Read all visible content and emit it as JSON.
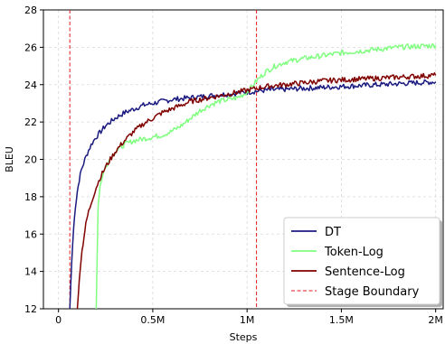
{
  "chart_data": {
    "type": "line",
    "title": "",
    "xlabel": "Steps",
    "ylabel": "BLEU",
    "xlim": [
      -0.08,
      2.04
    ],
    "ylim": [
      12,
      28
    ],
    "x_unit": "M steps",
    "x_ticks": [
      0,
      0.5,
      1.0,
      1.5,
      2.0
    ],
    "x_tick_labels": [
      "0",
      "0.5M",
      "1M",
      "1.5M",
      "2M"
    ],
    "y_ticks": [
      12,
      14,
      16,
      18,
      20,
      22,
      24,
      26,
      28
    ],
    "y_tick_labels": [
      "12",
      "14",
      "16",
      "18",
      "20",
      "22",
      "24",
      "26",
      "28"
    ],
    "grid": true,
    "legend_position": "lower-right",
    "stage_boundaries": [
      0.06,
      1.05
    ],
    "series": [
      {
        "name": "DT",
        "color": "#1a1a80",
        "x": [
          0.06,
          0.07,
          0.08,
          0.09,
          0.1,
          0.11,
          0.12,
          0.14,
          0.16,
          0.18,
          0.2,
          0.25,
          0.3,
          0.35,
          0.4,
          0.45,
          0.5,
          0.55,
          0.6,
          0.65,
          0.7,
          0.75,
          0.8,
          0.85,
          0.9,
          0.95,
          1.0,
          1.05,
          1.1,
          1.2,
          1.3,
          1.4,
          1.5,
          1.6,
          1.7,
          1.8,
          1.9,
          2.0
        ],
        "y": [
          12,
          14.5,
          16.3,
          17.5,
          18.3,
          18.9,
          19.4,
          20.0,
          20.5,
          20.9,
          21.2,
          21.8,
          22.2,
          22.5,
          22.7,
          22.9,
          23.0,
          23.1,
          23.2,
          23.25,
          23.3,
          23.35,
          23.4,
          23.45,
          23.5,
          23.55,
          23.6,
          23.65,
          23.7,
          23.75,
          23.8,
          23.85,
          23.9,
          23.95,
          24.0,
          24.05,
          24.1,
          24.15
        ]
      },
      {
        "name": "Token-Log",
        "color": "#80ff80",
        "x": [
          0.2,
          0.21,
          0.22,
          0.23,
          0.25,
          0.27,
          0.3,
          0.35,
          0.4,
          0.45,
          0.5,
          0.55,
          0.6,
          0.65,
          0.7,
          0.75,
          0.8,
          0.85,
          0.9,
          0.95,
          1.0,
          1.05,
          1.1,
          1.15,
          1.2,
          1.3,
          1.4,
          1.5,
          1.6,
          1.7,
          1.8,
          1.9,
          2.0
        ],
        "y": [
          12,
          17.5,
          18.5,
          19.0,
          19.6,
          20.0,
          20.4,
          20.8,
          21.0,
          21.1,
          21.2,
          21.3,
          21.5,
          21.8,
          22.2,
          22.6,
          22.9,
          23.1,
          23.2,
          23.3,
          23.6,
          24.2,
          24.7,
          25.0,
          25.2,
          25.4,
          25.55,
          25.7,
          25.8,
          25.9,
          26.0,
          26.05,
          26.1
        ]
      },
      {
        "name": "Sentence-Log",
        "color": "#800000",
        "x": [
          0.1,
          0.11,
          0.12,
          0.13,
          0.14,
          0.15,
          0.16,
          0.18,
          0.2,
          0.22,
          0.25,
          0.3,
          0.35,
          0.4,
          0.45,
          0.5,
          0.55,
          0.6,
          0.65,
          0.7,
          0.75,
          0.8,
          0.85,
          0.9,
          0.95,
          1.0,
          1.05,
          1.1,
          1.2,
          1.3,
          1.4,
          1.5,
          1.6,
          1.7,
          1.8,
          1.9,
          2.0
        ],
        "y": [
          12,
          13.5,
          14.7,
          15.5,
          16.2,
          16.8,
          17.2,
          17.9,
          18.5,
          19.0,
          19.6,
          20.4,
          21.0,
          21.5,
          21.9,
          22.2,
          22.5,
          22.7,
          22.9,
          23.1,
          23.2,
          23.3,
          23.4,
          23.5,
          23.6,
          23.7,
          23.8,
          23.9,
          24.0,
          24.1,
          24.2,
          24.25,
          24.3,
          24.35,
          24.4,
          24.45,
          24.5
        ]
      },
      {
        "name": "Stage Boundary",
        "color": "#e31a1c",
        "style": "dashed"
      }
    ]
  }
}
